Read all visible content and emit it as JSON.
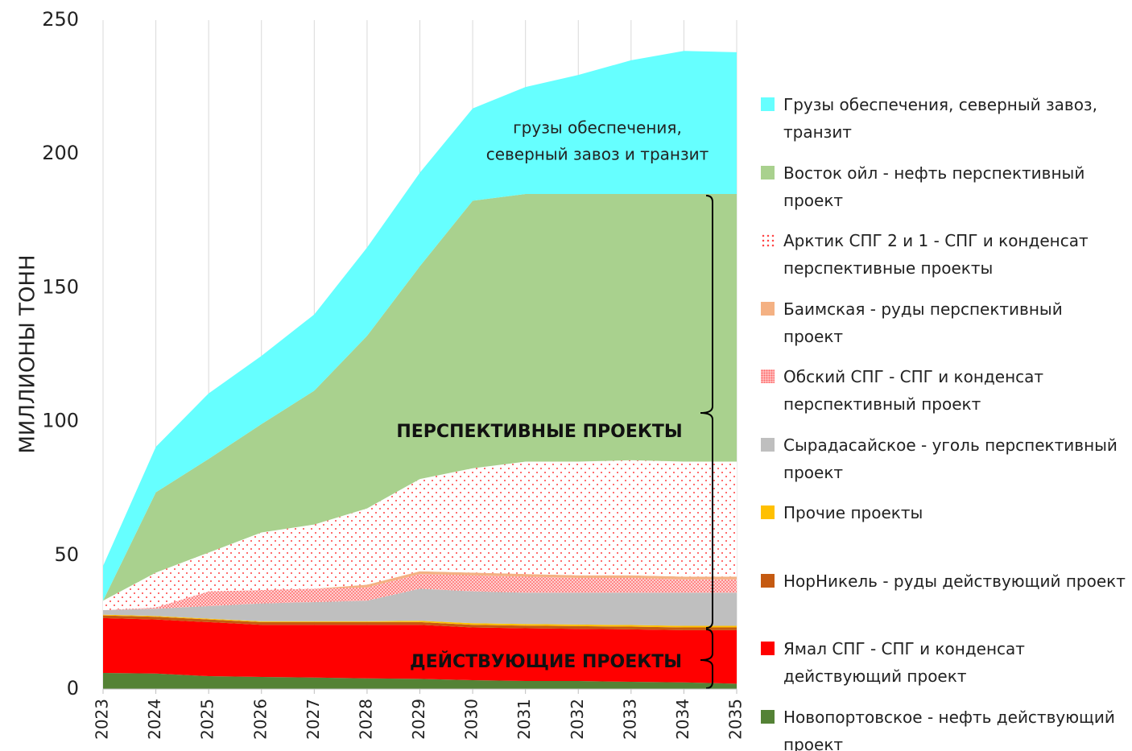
{
  "chart_data": {
    "type": "stacked_area",
    "ylabel": "МИЛЛИОНЫ ТОНН",
    "x": [
      2023,
      2024,
      2025,
      2026,
      2027,
      2028,
      2029,
      2030,
      2031,
      2032,
      2033,
      2034,
      2035
    ],
    "xlim": [
      2023,
      2035
    ],
    "xticks": [
      2023,
      2024,
      2025,
      2026,
      2027,
      2028,
      2029,
      2030,
      2031,
      2032,
      2033,
      2034,
      2035
    ],
    "ylim": [
      0,
      250
    ],
    "yticks": [
      0,
      50,
      100,
      150,
      200,
      250
    ],
    "grid": "x",
    "legend": "right",
    "annotations": [
      "грузы обеспечения,",
      "северный завоз и транзит",
      "ПЕРСПЕКТИВНЫЕ ПРОЕКТЫ",
      "ДЕЙСТВУЮЩИЕ ПРОЕКТЫ"
    ],
    "series": [
      {
        "name": "Новопортовское - нефть действующий проект",
        "color": "#548235",
        "values": [
          6,
          5.8,
          4.8,
          4.5,
          4.3,
          4,
          3.8,
          3.3,
          3,
          3,
          2.7,
          2.5,
          2
        ]
      },
      {
        "name": "Ямал СПГ - СПГ и конденсат действующий проект",
        "color": "#ff0000",
        "values": [
          20.5,
          20.2,
          20.2,
          19.5,
          19.7,
          20,
          20.2,
          19.7,
          19.7,
          19.5,
          19.6,
          19.5,
          20
        ]
      },
      {
        "name": "НорНикель - руды действующий проект",
        "color": "#c55a11",
        "values": [
          1,
          1,
          1,
          1,
          1,
          1,
          1,
          1,
          1,
          1,
          1,
          1,
          1
        ]
      },
      {
        "name": "Прочие проекты",
        "color": "#ffc000",
        "values": [
          0.3,
          0.3,
          0.3,
          0.3,
          0.3,
          0.3,
          0.5,
          0.6,
          0.6,
          0.6,
          0.6,
          0.6,
          0.6
        ]
      },
      {
        "name": "Сырадасайское - уголь перспективный проект",
        "color": "#bfbfbf",
        "values": [
          1.7,
          2.7,
          4.7,
          6.7,
          7.2,
          7.7,
          12,
          11.9,
          11.7,
          11.9,
          12.1,
          12.4,
          12.4
        ]
      },
      {
        "name": "Обский СПГ - СПГ и конденсат перспективный проект",
        "color": "#ff6666",
        "pattern": "dense-dots",
        "values": [
          0,
          0.5,
          5.5,
          5,
          5,
          5,
          5.5,
          6,
          6,
          5.5,
          5.5,
          5,
          5
        ]
      },
      {
        "name": "Баимская - руды перспективный проект",
        "color": "#f4b183",
        "values": [
          0,
          0,
          0,
          0,
          0,
          1,
          1,
          1,
          1,
          1,
          1,
          1,
          1
        ]
      },
      {
        "name": "Арктик СПГ 2 и 1 - СПГ и конденсат перспективные проекты",
        "color": "#ff4040",
        "pattern": "sparse-dots",
        "values": [
          3.5,
          13,
          14.5,
          21.5,
          24,
          28.5,
          34.5,
          39,
          42,
          42.5,
          43,
          43,
          43
        ]
      },
      {
        "name": "Восток ойл - нефть перспективный проект",
        "color": "#a9d18e",
        "values": [
          0,
          30,
          35,
          40.5,
          50,
          64.5,
          79.5,
          100,
          100,
          100,
          99.5,
          100,
          100
        ]
      },
      {
        "name": "Грузы обеспечения, северный завоз, транзит",
        "color": "#66ffff",
        "values": [
          13,
          17,
          24.5,
          25.5,
          28.5,
          33,
          35,
          34.5,
          40,
          44.5,
          50,
          53.5,
          53
        ]
      }
    ]
  }
}
